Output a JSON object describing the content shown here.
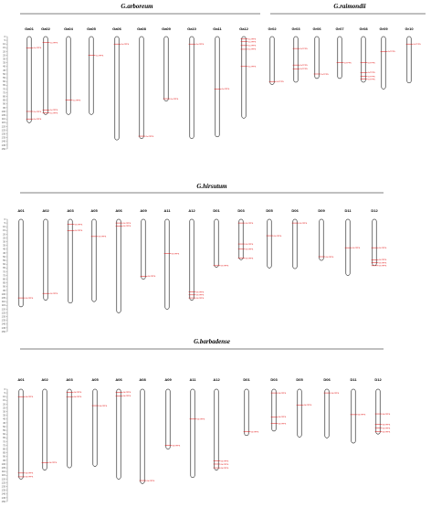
{
  "colors": {
    "gene": "#e00000",
    "chromosome": "#000000",
    "scale": "#555555"
  },
  "scale_ticks": [
    0,
    5,
    10,
    15,
    20,
    25,
    30,
    35,
    40,
    45,
    50,
    55,
    60,
    65,
    70,
    75,
    80,
    85,
    90,
    95,
    100,
    105,
    110,
    115,
    120,
    125,
    130,
    135,
    140,
    145,
    150
  ],
  "panels": [
    {
      "id": "arb",
      "groups": [
        {
          "title": "G.arboreum",
          "chromosomes": [
            {
              "name": "Ga01",
              "length": 115,
              "genes": [
                {
                  "pos": 15,
                  "label": "GaTPPS"
                },
                {
                  "pos": 100,
                  "label": "GaTPPS"
                },
                {
                  "pos": 110,
                  "label": "GaTPPS"
                }
              ]
            },
            {
              "name": "Ga02",
              "length": 104,
              "genes": [
                {
                  "pos": 8,
                  "label": "GaTPPS"
                },
                {
                  "pos": 98,
                  "label": "GaTPPS"
                },
                {
                  "pos": 102,
                  "label": "GaTPPS"
                }
              ]
            },
            {
              "name": "Ga04",
              "length": 104,
              "genes": [
                {
                  "pos": 85,
                  "label": "GaTPPS"
                }
              ]
            },
            {
              "name": "Ga05",
              "length": 104,
              "genes": [
                {
                  "pos": 25,
                  "label": "GaTPPS"
                }
              ]
            },
            {
              "name": "Ga06",
              "length": 138,
              "genes": [
                {
                  "pos": 10,
                  "label": "GaTPPS"
                }
              ]
            },
            {
              "name": "Ga08",
              "length": 136,
              "genes": [
                {
                  "pos": 133,
                  "label": "GaTPPS"
                }
              ]
            },
            {
              "name": "Ga09",
              "length": 86,
              "genes": [
                {
                  "pos": 83,
                  "label": "GaTPPS"
                }
              ]
            },
            {
              "name": "Ga10",
              "length": 136,
              "genes": [
                {
                  "pos": 10,
                  "label": "GaTPPS"
                }
              ]
            },
            {
              "name": "Ga11",
              "length": 134,
              "genes": [
                {
                  "pos": 70,
                  "label": "GaTPPS"
                }
              ]
            },
            {
              "name": "Ga12",
              "length": 109,
              "genes": [
                {
                  "pos": 3,
                  "label": "GaTPPS"
                },
                {
                  "pos": 7,
                  "label": "GaTPPS"
                },
                {
                  "pos": 12,
                  "label": "GaTPPS"
                },
                {
                  "pos": 17,
                  "label": "GaTPPS"
                },
                {
                  "pos": 40,
                  "label": "GaTPPS"
                }
              ]
            }
          ]
        },
        {
          "title": "G.raimondii",
          "chromosomes": [
            {
              "name": "Gr02",
              "length": 64,
              "genes": [
                {
                  "pos": 60,
                  "label": "GrTPPS"
                }
              ]
            },
            {
              "name": "Gr03",
              "length": 61,
              "genes": [
                {
                  "pos": 16,
                  "label": "GrTPPS"
                },
                {
                  "pos": 38,
                  "label": "GrTPPS"
                },
                {
                  "pos": 43,
                  "label": "GrTPPS"
                }
              ]
            },
            {
              "name": "Gr06",
              "length": 56,
              "genes": [
                {
                  "pos": 50,
                  "label": "GrTPPS"
                }
              ]
            },
            {
              "name": "Gr07",
              "length": 56,
              "genes": [
                {
                  "pos": 35,
                  "label": "GrTPPS"
                }
              ]
            },
            {
              "name": "Gr08",
              "length": 61,
              "genes": [
                {
                  "pos": 35,
                  "label": "GrTPPS"
                },
                {
                  "pos": 48,
                  "label": "GrTPPS"
                },
                {
                  "pos": 53,
                  "label": "GrTPPS"
                },
                {
                  "pos": 57,
                  "label": "GrTPPS"
                }
              ]
            },
            {
              "name": "Gr09",
              "length": 70,
              "genes": [
                {
                  "pos": 20,
                  "label": "GrTPPS"
                }
              ]
            },
            {
              "name": "Gr10",
              "length": 62,
              "genes": [
                {
                  "pos": 10,
                  "label": "GrTPPS"
                }
              ]
            }
          ]
        }
      ]
    },
    {
      "id": "hir",
      "groups": [
        {
          "title": "G.hirsutum",
          "chromosomes": [
            {
              "name": "A01",
              "length": 117,
              "genes": [
                {
                  "pos": 105,
                  "label": "GhTPPS"
                }
              ]
            },
            {
              "name": "A02",
              "length": 108,
              "genes": [
                {
                  "pos": 99,
                  "label": "GhTPPS"
                }
              ]
            },
            {
              "name": "A03",
              "length": 112,
              "genes": [
                {
                  "pos": 7,
                  "label": "GhTPPS"
                },
                {
                  "pos": 15,
                  "label": "GhTPPS"
                }
              ]
            },
            {
              "name": "A05",
              "length": 110,
              "genes": [
                {
                  "pos": 23,
                  "label": "GhTPPS"
                }
              ]
            },
            {
              "name": "A06",
              "length": 125,
              "genes": [
                {
                  "pos": 5,
                  "label": "GhTPPS"
                },
                {
                  "pos": 9,
                  "label": "GhTPPS"
                }
              ]
            },
            {
              "name": "A09",
              "length": 80,
              "genes": [
                {
                  "pos": 76,
                  "label": "GhTPPS"
                }
              ]
            },
            {
              "name": "A11",
              "length": 120,
              "genes": [
                {
                  "pos": 46,
                  "label": "GhTPPS"
                }
              ]
            },
            {
              "name": "A12",
              "length": 108,
              "genes": [
                {
                  "pos": 97,
                  "label": "GhTPPS"
                },
                {
                  "pos": 101,
                  "label": "GhTPPS"
                },
                {
                  "pos": 105,
                  "label": "GhTPPS"
                }
              ]
            },
            {
              "name": "D01",
              "length": 64,
              "genes": [
                {
                  "pos": 62,
                  "label": "GhTPPS"
                }
              ]
            },
            {
              "name": "D03",
              "length": 54,
              "genes": [
                {
                  "pos": 5,
                  "label": "GhTPPS"
                },
                {
                  "pos": 33,
                  "label": "GhTPPS"
                },
                {
                  "pos": 40,
                  "label": "GhTPPS"
                },
                {
                  "pos": 52,
                  "label": "GhTPPS"
                }
              ]
            },
            {
              "name": "D05",
              "length": 65,
              "genes": [
                {
                  "pos": 22,
                  "label": "GhTPPS"
                }
              ]
            },
            {
              "name": "D06",
              "length": 66,
              "genes": [
                {
                  "pos": 5,
                  "label": "GhTPPS"
                }
              ]
            },
            {
              "name": "D09",
              "length": 55,
              "genes": [
                {
                  "pos": 50,
                  "label": "GhTPPS"
                }
              ]
            },
            {
              "name": "D11",
              "length": 75,
              "genes": [
                {
                  "pos": 38,
                  "label": "GhTPPS"
                }
              ]
            },
            {
              "name": "D12",
              "length": 62,
              "genes": [
                {
                  "pos": 38,
                  "label": "GhTPPS"
                },
                {
                  "pos": 54,
                  "label": "GhTPPS"
                },
                {
                  "pos": 58,
                  "label": "GhTPPS"
                },
                {
                  "pos": 62,
                  "label": "GhTPPS"
                }
              ]
            }
          ]
        }
      ]
    },
    {
      "id": "bar",
      "groups": [
        {
          "title": "G.barbadense",
          "chromosomes": [
            {
              "name": "A01",
              "length": 120,
              "genes": [
                {
                  "pos": 10,
                  "label": "GbTPPS"
                },
                {
                  "pos": 112,
                  "label": "GbTPPS"
                },
                {
                  "pos": 117,
                  "label": "GbTPPS"
                }
              ]
            },
            {
              "name": "A02",
              "length": 108,
              "genes": [
                {
                  "pos": 98,
                  "label": "GbTPPS"
                }
              ]
            },
            {
              "name": "A03",
              "length": 105,
              "genes": [
                {
                  "pos": 4,
                  "label": "GbTPPS"
                },
                {
                  "pos": 10,
                  "label": "GbTPPS"
                }
              ]
            },
            {
              "name": "A05",
              "length": 103,
              "genes": [
                {
                  "pos": 22,
                  "label": "GbTPPS"
                }
              ]
            },
            {
              "name": "A06",
              "length": 120,
              "genes": [
                {
                  "pos": 4,
                  "label": "GbTPPS"
                },
                {
                  "pos": 9,
                  "label": "GbTPPS"
                }
              ]
            },
            {
              "name": "A08",
              "length": 126,
              "genes": [
                {
                  "pos": 122,
                  "label": "GbTPPS"
                }
              ]
            },
            {
              "name": "A09",
              "length": 80,
              "genes": [
                {
                  "pos": 75,
                  "label": "GbTPPS"
                }
              ]
            },
            {
              "name": "A11",
              "length": 118,
              "genes": [
                {
                  "pos": 40,
                  "label": "GbTPPS"
                }
              ]
            },
            {
              "name": "A12",
              "length": 108,
              "genes": [
                {
                  "pos": 96,
                  "label": "GbTPPS"
                },
                {
                  "pos": 100,
                  "label": "GbTPPS"
                },
                {
                  "pos": 105,
                  "label": "GbTPPS"
                }
              ]
            },
            {
              "name": "D01",
              "length": 62,
              "genes": [
                {
                  "pos": 57,
                  "label": "GbTPPS"
                }
              ]
            },
            {
              "name": "D03",
              "length": 56,
              "genes": [
                {
                  "pos": 5,
                  "label": "GbTPPS"
                },
                {
                  "pos": 37,
                  "label": "GbTPPS"
                },
                {
                  "pos": 46,
                  "label": "GbTPPS"
                }
              ]
            },
            {
              "name": "D05",
              "length": 64,
              "genes": [
                {
                  "pos": 21,
                  "label": "GbTPPS"
                }
              ]
            },
            {
              "name": "D06",
              "length": 65,
              "genes": [
                {
                  "pos": 5,
                  "label": "GbTPPS"
                }
              ]
            },
            {
              "name": "D11",
              "length": 72,
              "genes": [
                {
                  "pos": 34,
                  "label": "GbTPPS"
                }
              ]
            },
            {
              "name": "D12",
              "length": 60,
              "genes": [
                {
                  "pos": 33,
                  "label": "GbTPPS"
                },
                {
                  "pos": 47,
                  "label": "GbTPPS"
                },
                {
                  "pos": 52,
                  "label": "GbTPPS"
                },
                {
                  "pos": 57,
                  "label": "GbTPPS"
                }
              ]
            }
          ]
        }
      ]
    }
  ]
}
